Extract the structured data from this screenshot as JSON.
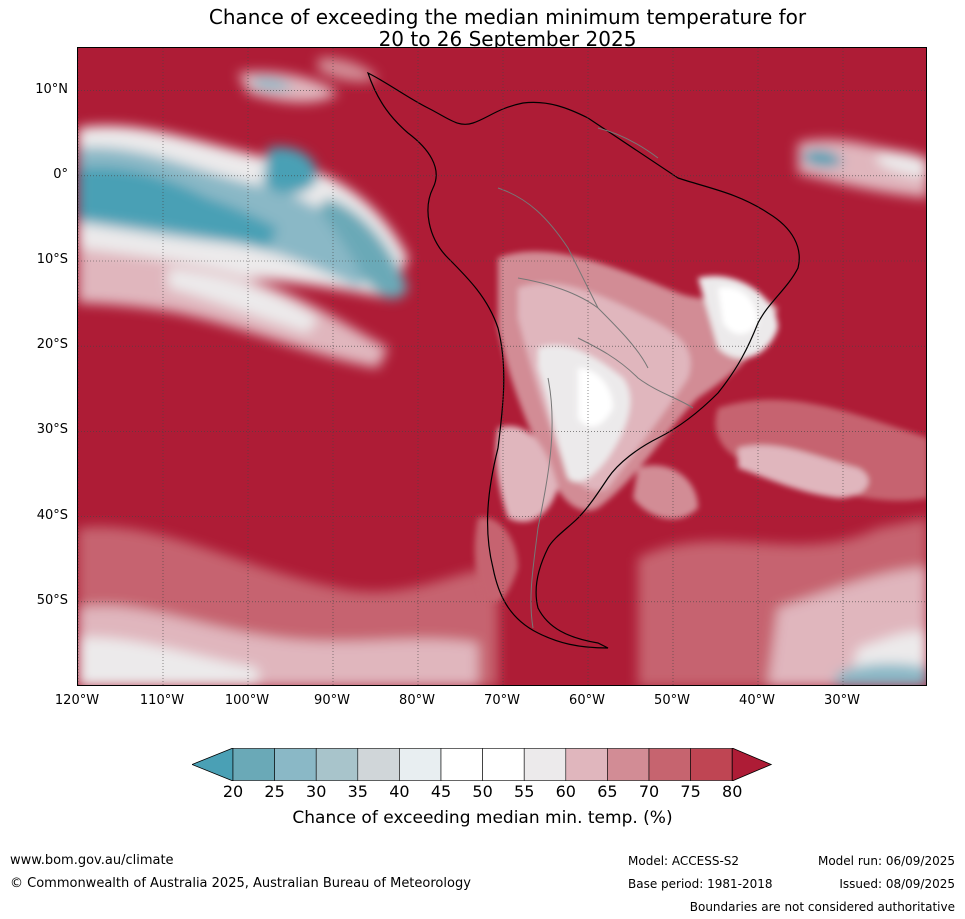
{
  "title": {
    "line1": "Chance of exceeding the median minimum temperature for",
    "line2": "20 to 26 September 2025"
  },
  "map": {
    "lat_ticks": [
      "10°N",
      "0°",
      "10°S",
      "20°S",
      "30°S",
      "40°S",
      "50°S"
    ],
    "lon_ticks": [
      "120°W",
      "110°W",
      "100°W",
      "90°W",
      "80°W",
      "70°W",
      "60°W",
      "50°W",
      "40°W",
      "30°W"
    ],
    "lat_values": [
      10,
      0,
      -10,
      -20,
      -30,
      -40,
      -50
    ],
    "lon_values": [
      -120,
      -110,
      -100,
      -90,
      -80,
      -70,
      -60,
      -50,
      -40,
      -30
    ],
    "extent": {
      "lon_min": -120,
      "lon_max": -20,
      "lat_min": -60,
      "lat_max": 15
    },
    "base_color": "#ae1c36"
  },
  "colorbar": {
    "ticks": [
      "20",
      "25",
      "30",
      "35",
      "40",
      "45",
      "50",
      "55",
      "60",
      "65",
      "70",
      "75",
      "80"
    ],
    "colors": [
      "#4aa0b5",
      "#6aa9b7",
      "#8ab8c6",
      "#a8c4cb",
      "#d0d6d9",
      "#e8eef1",
      "#ffffff",
      "#ffffff",
      "#eceaeb",
      "#e0b6bd",
      "#d28c95",
      "#c6646f",
      "#bf4553",
      "#ae1c36"
    ],
    "label": "Chance of exceeding median min. temp. (%)"
  },
  "footer": {
    "website": "www.bom.gov.au/climate",
    "copyright": "© Commonwealth of Australia 2025, Australian Bureau of Meteorology",
    "model": "Model: ACCESS-S2",
    "base_period": "Base period: 1981-2018",
    "model_run": "Model run: 06/09/2025",
    "issued": "Issued: 08/09/2025",
    "disclaimer": "Boundaries are not considered authoritative"
  }
}
